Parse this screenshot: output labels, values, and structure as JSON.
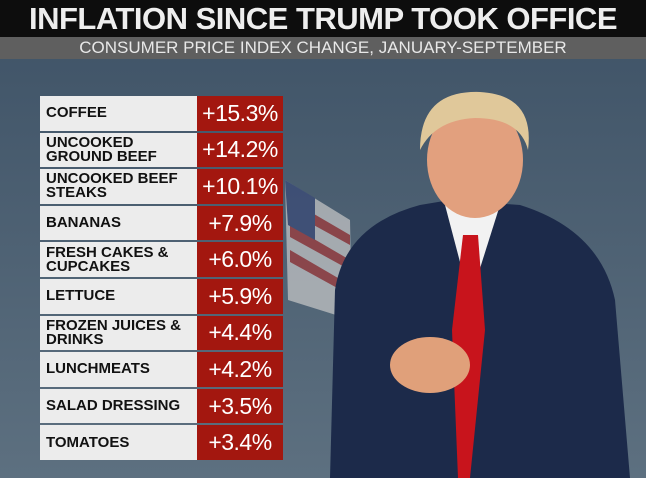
{
  "chart_data": {
    "type": "table",
    "title": "INFLATION SINCE TRUMP TOOK OFFICE",
    "subtitle": "CONSUMER PRICE INDEX CHANGE, JANUARY-SEPTEMBER",
    "rows": [
      {
        "item": "COFFEE",
        "change": "+15.3%",
        "value": 15.3
      },
      {
        "item": "UNCOOKED GROUND BEEF",
        "change": "+14.2%",
        "value": 14.2
      },
      {
        "item": "UNCOOKED BEEF STEAKS",
        "change": "+10.1%",
        "value": 10.1
      },
      {
        "item": "BANANAS",
        "change": "+7.9%",
        "value": 7.9
      },
      {
        "item": "FRESH CAKES & CUPCAKES",
        "change": "+6.0%",
        "value": 6.0
      },
      {
        "item": "LETTUCE",
        "change": "+5.9%",
        "value": 5.9
      },
      {
        "item": "FROZEN JUICES & DRINKS",
        "change": "+4.4%",
        "value": 4.4
      },
      {
        "item": "LUNCHMEATS",
        "change": "+4.2%",
        "value": 4.2
      },
      {
        "item": "SALAD DRESSING",
        "change": "+3.5%",
        "value": 3.5
      },
      {
        "item": "TOMATOES",
        "change": "+3.4%",
        "value": 3.4
      }
    ]
  },
  "colors": {
    "value_bg": "#a3170f",
    "label_bg": "#ececec",
    "title_bg": "#0d0d0d",
    "subtitle_bg": "#5f5f5f"
  }
}
